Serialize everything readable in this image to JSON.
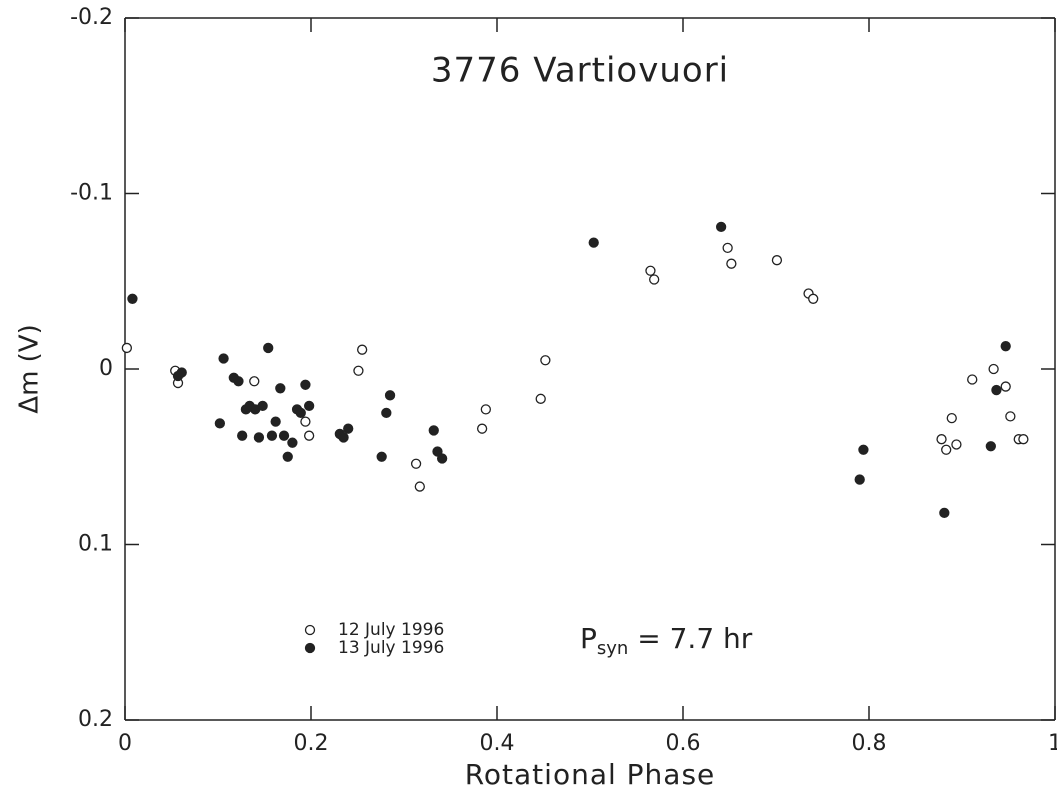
{
  "chart_data": {
    "type": "scatter",
    "title": "3776 Vartiovuori",
    "x_label": "Rotational Phase",
    "y_label": "Δm (V)",
    "annotation": {
      "symbol": "P",
      "subscript": "syn",
      "text": " = 7.7 hr"
    },
    "xlim": [
      0,
      1
    ],
    "xticks": [
      0,
      0.2,
      0.4,
      0.6,
      0.8,
      1
    ],
    "ylim": [
      0.2,
      -0.2
    ],
    "yticks": [
      -0.2,
      -0.1,
      0,
      0.1,
      0.2
    ],
    "series": [
      {
        "name": "12 July 1996",
        "color": "#222222",
        "marker": "open",
        "x": [
          0.002,
          0.054,
          0.057,
          0.139,
          0.194,
          0.198,
          0.251,
          0.255,
          0.313,
          0.317,
          0.384,
          0.388,
          0.447,
          0.452,
          0.565,
          0.569,
          0.648,
          0.652,
          0.701,
          0.735,
          0.74,
          0.878,
          0.883,
          0.889,
          0.894,
          0.911,
          0.934,
          0.947,
          0.952,
          0.961,
          0.966
        ],
        "values": [
          -0.012,
          0.001,
          0.008,
          0.007,
          0.03,
          0.038,
          0.001,
          -0.011,
          0.054,
          0.067,
          0.034,
          0.023,
          0.017,
          -0.005,
          -0.056,
          -0.051,
          -0.069,
          -0.06,
          -0.062,
          -0.043,
          -0.04,
          0.04,
          0.046,
          0.028,
          0.043,
          0.006,
          0.0,
          0.01,
          0.027,
          0.04,
          0.04
        ]
      },
      {
        "name": "13 July 1996",
        "color": "#222222",
        "marker": "filled",
        "x": [
          0.008,
          0.057,
          0.061,
          0.102,
          0.106,
          0.117,
          0.122,
          0.126,
          0.13,
          0.134,
          0.14,
          0.144,
          0.148,
          0.154,
          0.158,
          0.162,
          0.167,
          0.171,
          0.175,
          0.18,
          0.185,
          0.189,
          0.194,
          0.198,
          0.231,
          0.235,
          0.24,
          0.276,
          0.281,
          0.285,
          0.332,
          0.336,
          0.341,
          0.504,
          0.641,
          0.79,
          0.794,
          0.881,
          0.931,
          0.937,
          0.947
        ],
        "values": [
          -0.04,
          0.004,
          0.002,
          0.031,
          -0.006,
          0.005,
          0.007,
          0.038,
          0.023,
          0.021,
          0.023,
          0.039,
          0.021,
          -0.012,
          0.038,
          0.03,
          0.011,
          0.038,
          0.05,
          0.042,
          0.023,
          0.025,
          0.009,
          0.021,
          0.037,
          0.039,
          0.034,
          0.05,
          0.025,
          0.015,
          0.035,
          0.047,
          0.051,
          -0.072,
          -0.081,
          0.063,
          0.046,
          0.082,
          0.044,
          0.012,
          -0.013
        ]
      }
    ]
  }
}
